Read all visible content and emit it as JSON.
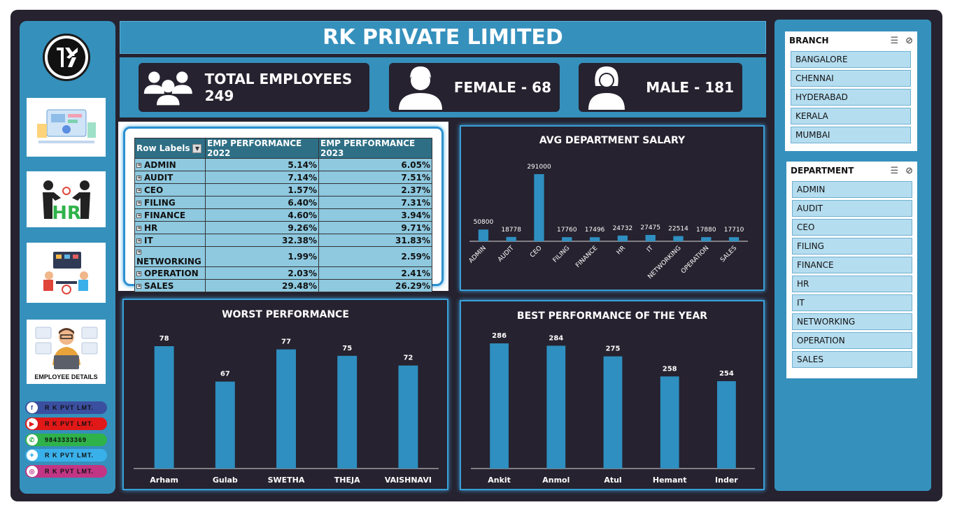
{
  "header": {
    "title": "RK PRIVATE LIMITED"
  },
  "kpis": {
    "total": "TOTAL EMPLOYEES 249",
    "female": "FEMALE - 68",
    "male": "MALE - 181"
  },
  "sidebar": {
    "tile_label": "EMPLOYEE DETAILS",
    "social": [
      {
        "icon": "facebook-icon",
        "label": "R K  PVT  LMT.",
        "color": "#3b4fa0"
      },
      {
        "icon": "youtube-icon",
        "label": "R K  PVT  LMT.",
        "color": "#e01818"
      },
      {
        "icon": "whatsapp-icon",
        "label": "9843333369",
        "color": "#2fb24a"
      },
      {
        "icon": "twitter-icon",
        "label": "R K  PVT  LMT.",
        "color": "#3ab0ea"
      },
      {
        "icon": "instagram-icon",
        "label": "R K  PVT  LMT.",
        "color": "#c13584"
      }
    ]
  },
  "pivot": {
    "headers": [
      "Row Labels",
      "EMP PERFORMANCE 2022",
      "EMP PERFORMANCE 2023"
    ],
    "rows": [
      [
        "ADMIN",
        "5.14%",
        "6.05%"
      ],
      [
        "AUDIT",
        "7.14%",
        "7.51%"
      ],
      [
        "CEO",
        "1.57%",
        "2.37%"
      ],
      [
        "FILING",
        "6.40%",
        "7.31%"
      ],
      [
        "FINANCE",
        "4.60%",
        "3.94%"
      ],
      [
        "HR",
        "9.26%",
        "9.71%"
      ],
      [
        "IT",
        "32.38%",
        "31.83%"
      ],
      [
        "NETWORKING",
        "1.99%",
        "2.59%"
      ],
      [
        "OPERATION",
        "2.03%",
        "2.41%"
      ],
      [
        "SALES",
        "29.48%",
        "26.29%"
      ]
    ]
  },
  "chart_data": [
    {
      "type": "bar",
      "title": "AVG DEPARTMENT SALARY",
      "categories": [
        "ADMIN",
        "AUDIT",
        "CEO",
        "FILING",
        "FINANCE",
        "HR",
        "IT",
        "NETWORKING",
        "OPERATION",
        "SALES"
      ],
      "values": [
        50800,
        18778,
        291000,
        17760,
        17496,
        24732,
        27475,
        22514,
        17880,
        17710
      ],
      "color": "#2e8fc0"
    },
    {
      "type": "bar",
      "title": "WORST PERFORMANCE",
      "categories": [
        "Arham",
        "Gulab",
        "SWETHA",
        "THEJA",
        "VAISHNAVI"
      ],
      "values": [
        78,
        67,
        77,
        75,
        72
      ],
      "color": "#2e8fc0"
    },
    {
      "type": "bar",
      "title": "BEST PERFORMANCE OF THE YEAR",
      "categories": [
        "Ankit",
        "Anmol",
        "Atul",
        "Hemant",
        "Inder"
      ],
      "values": [
        286,
        284,
        275,
        258,
        254
      ],
      "color": "#2e8fc0"
    }
  ],
  "slicers": {
    "branch": {
      "title": "BRANCH",
      "items": [
        "BANGALORE",
        "CHENNAI",
        "HYDERABAD",
        "KERALA",
        "MUMBAI"
      ]
    },
    "department": {
      "title": "DEPARTMENT",
      "items": [
        "ADMIN",
        "AUDIT",
        "CEO",
        "FILING",
        "FINANCE",
        "HR",
        "IT",
        "NETWORKING",
        "OPERATION",
        "SALES"
      ]
    }
  }
}
